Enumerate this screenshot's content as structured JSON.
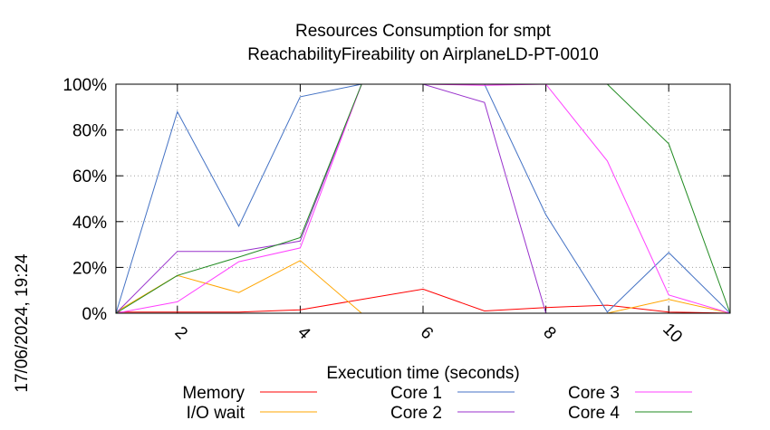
{
  "chart_data": {
    "type": "line",
    "title": "Resources Consumption for smpt",
    "subtitle": "ReachabilityFireability on AirplaneLD-PT-0010",
    "xlabel": "Execution time (seconds)",
    "ylabel": "",
    "xlim": [
      1,
      11
    ],
    "ylim": [
      0,
      100
    ],
    "xticks": [
      2,
      4,
      6,
      8,
      10
    ],
    "yticks": [
      0,
      20,
      40,
      60,
      80,
      100
    ],
    "ytick_labels": [
      "0%",
      "20%",
      "40%",
      "60%",
      "80%",
      "100%"
    ],
    "grid": true,
    "legend_position": "bottom",
    "timestamp": "17/06/2024, 19:24",
    "series": [
      {
        "name": "Memory",
        "color": "#ff0000",
        "x": [
          1,
          2,
          3,
          4,
          5,
          6,
          7,
          8,
          9,
          10,
          11
        ],
        "y": [
          0.5,
          0.5,
          0.5,
          1.5,
          6,
          10.5,
          1,
          2.5,
          3.5,
          0.5,
          0
        ]
      },
      {
        "name": "I/O wait",
        "color": "#ffa500",
        "x": [
          1,
          2,
          3,
          4,
          5,
          6,
          7,
          8,
          9,
          10,
          11
        ],
        "y": [
          0.5,
          16.5,
          9,
          23,
          0,
          0,
          0,
          0,
          0,
          6,
          0
        ]
      },
      {
        "name": "Core 1",
        "color": "#4472c4",
        "x": [
          1,
          2,
          3,
          4,
          5,
          6,
          7,
          8,
          9,
          10,
          11
        ],
        "y": [
          0,
          88,
          38,
          94.5,
          100,
          100,
          100,
          43,
          0.5,
          26.5,
          0
        ]
      },
      {
        "name": "Core 2",
        "color": "#9932cc",
        "x": [
          1,
          2,
          3,
          4,
          5,
          6,
          7,
          8,
          9,
          10,
          11
        ],
        "y": [
          0,
          27,
          27,
          31.5,
          100,
          100,
          92,
          0,
          0,
          0,
          0
        ]
      },
      {
        "name": "Core 3",
        "color": "#ff40ff",
        "x": [
          1,
          2,
          3,
          4,
          5,
          6,
          7,
          8,
          9,
          10,
          11
        ],
        "y": [
          0,
          5,
          22.5,
          28.5,
          100,
          100,
          99.5,
          100,
          66.5,
          8,
          0
        ]
      },
      {
        "name": "Core 4",
        "color": "#228b22",
        "x": [
          1,
          2,
          3,
          4,
          5,
          6,
          7,
          8,
          9,
          10,
          11
        ],
        "y": [
          0,
          16.5,
          24.5,
          33,
          100,
          100,
          100,
          100,
          100,
          74,
          0
        ]
      }
    ]
  }
}
